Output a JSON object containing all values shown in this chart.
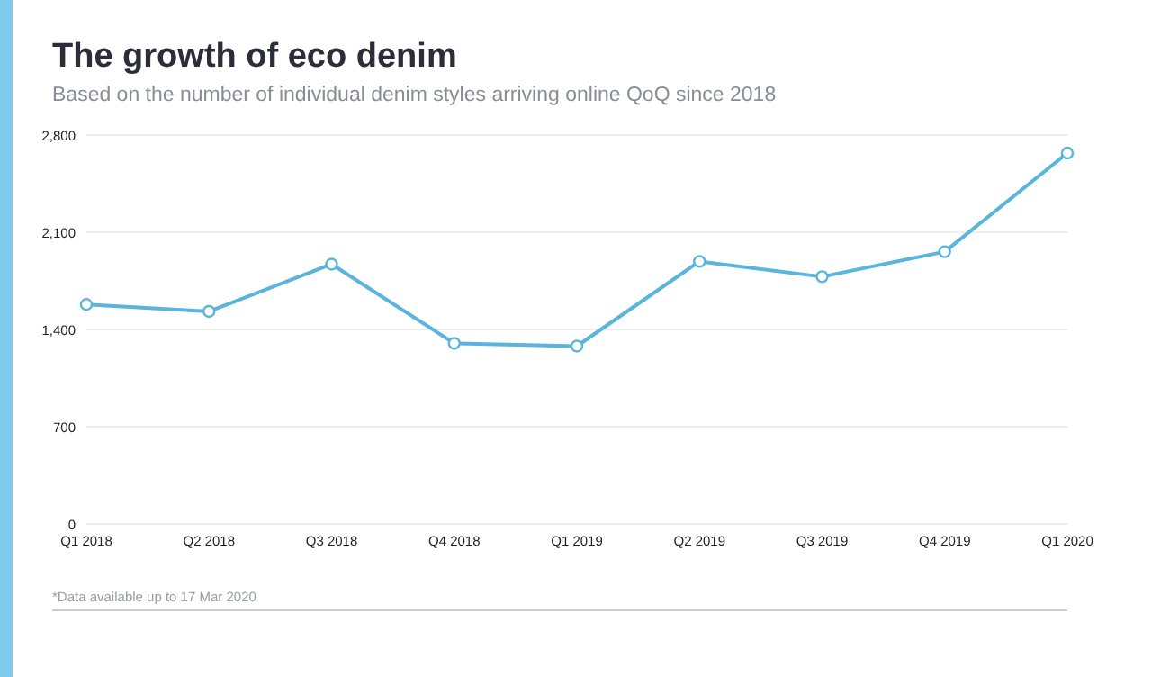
{
  "chart_data": {
    "type": "line",
    "title": "The growth of eco denim",
    "subtitle": "Based on the number of individual denim styles arriving online QoQ since 2018",
    "categories": [
      "Q1 2018",
      "Q2 2018",
      "Q3 2018",
      "Q4 2018",
      "Q1 2019",
      "Q2 2019",
      "Q3 2019",
      "Q4 2019",
      "Q1 2020"
    ],
    "series": [
      {
        "color": "#5ab4dc",
        "values": [
          1580,
          1530,
          1870,
          1300,
          1280,
          1890,
          1780,
          1960,
          2670
        ]
      }
    ],
    "ylim": [
      0,
      2800
    ],
    "yticks": [
      {
        "value": 0,
        "label": "0"
      },
      {
        "value": 700,
        "label": "700"
      },
      {
        "value": 1400,
        "label": "1,400"
      },
      {
        "value": 2100,
        "label": "2,100"
      },
      {
        "value": 2800,
        "label": "2,800"
      }
    ],
    "grid": "y",
    "marker": "circle",
    "line_style": "solid",
    "annotations": [
      "*Data available up to 17 Mar 2020"
    ]
  }
}
